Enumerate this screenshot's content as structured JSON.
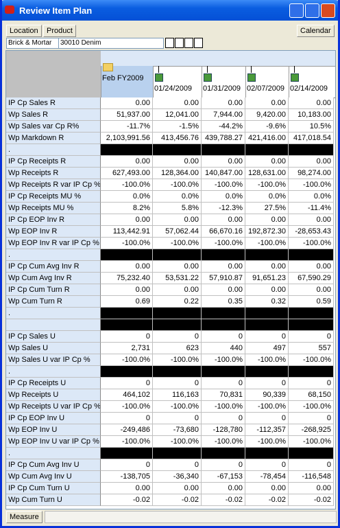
{
  "window": {
    "title": "Review Item Plan"
  },
  "toolbar": {
    "buttons": [
      "Location",
      "Product"
    ],
    "right_button": "Calendar"
  },
  "context": {
    "location": "Brick & Mortar",
    "product": "30010 Denim"
  },
  "table": {
    "columns": [
      "Feb FY2009",
      "01/24/2009",
      "01/31/2009",
      "02/07/2009",
      "02/14/2009"
    ],
    "rows": [
      {
        "label": "IP Cp Sales R",
        "values": [
          "0.00",
          "0.00",
          "0.00",
          "0.00",
          "0.00"
        ]
      },
      {
        "label": "Wp Sales R",
        "values": [
          "51,937.00",
          "12,041.00",
          "7,944.00",
          "9,420.00",
          "10,183.00"
        ]
      },
      {
        "label": "Wp Sales var Cp R%",
        "values": [
          "-11.7%",
          "-1.5%",
          "-44.2%",
          "-9.6%",
          "10.5%"
        ]
      },
      {
        "label": "Wp Markdown R",
        "values": [
          "2,103,991.56",
          "413,456.76",
          "439,788.27",
          "421,416.00",
          "417,018.54"
        ]
      },
      {
        "label": ".",
        "separator": true
      },
      {
        "label": "IP Cp Receipts R",
        "values": [
          "0.00",
          "0.00",
          "0.00",
          "0.00",
          "0.00"
        ]
      },
      {
        "label": "Wp Receipts R",
        "values": [
          "627,493.00",
          "128,364.00",
          "140,847.00",
          "128,631.00",
          "98,274.00"
        ]
      },
      {
        "label": "Wp Receipts R var IP Cp %",
        "values": [
          "-100.0%",
          "-100.0%",
          "-100.0%",
          "-100.0%",
          "-100.0%"
        ]
      },
      {
        "label": "IP Cp Receipts MU %",
        "values": [
          "0.0%",
          "0.0%",
          "0.0%",
          "0.0%",
          "0.0%"
        ]
      },
      {
        "label": "Wp Receipts MU %",
        "values": [
          "8.2%",
          "5.8%",
          "-12.3%",
          "27.5%",
          "-11.4%"
        ]
      },
      {
        "label": "IP Cp EOP Inv R",
        "values": [
          "0.00",
          "0.00",
          "0.00",
          "0.00",
          "0.00"
        ]
      },
      {
        "label": "Wp EOP Inv R",
        "values": [
          "113,442.91",
          "57,062.44",
          "66,670.16",
          "192,872.30",
          "-28,653.43"
        ]
      },
      {
        "label": "Wp EOP Inv R var IP Cp %",
        "values": [
          "-100.0%",
          "-100.0%",
          "-100.0%",
          "-100.0%",
          "-100.0%"
        ]
      },
      {
        "label": ".",
        "separator": true
      },
      {
        "label": "IP Cp Cum Avg Inv R",
        "values": [
          "0.00",
          "0.00",
          "0.00",
          "0.00",
          "0.00"
        ]
      },
      {
        "label": "Wp Cum Avg Inv R",
        "values": [
          "75,232.40",
          "53,531.22",
          "57,910.87",
          "91,651.23",
          "67,590.29"
        ]
      },
      {
        "label": "IP Cp Cum Turn R",
        "values": [
          "0.00",
          "0.00",
          "0.00",
          "0.00",
          "0.00"
        ]
      },
      {
        "label": "Wp Cum Turn R",
        "values": [
          "0.69",
          "0.22",
          "0.35",
          "0.32",
          "0.59"
        ]
      },
      {
        "label": ".",
        "separator": true
      },
      {
        "separator": true
      },
      {
        "label": "IP Cp Sales U",
        "values": [
          "0",
          "0",
          "0",
          "0",
          "0"
        ]
      },
      {
        "label": "Wp Sales U",
        "values": [
          "2,731",
          "623",
          "440",
          "497",
          "557"
        ]
      },
      {
        "label": "Wp Sales U var IP Cp %",
        "values": [
          "-100.0%",
          "-100.0%",
          "-100.0%",
          "-100.0%",
          "-100.0%"
        ]
      },
      {
        "label": ".",
        "separator": true
      },
      {
        "label": "IP Cp Receipts U",
        "values": [
          "0",
          "0",
          "0",
          "0",
          "0"
        ]
      },
      {
        "label": "Wp Receipts U",
        "values": [
          "464,102",
          "116,163",
          "70,831",
          "90,339",
          "68,150"
        ]
      },
      {
        "label": "Wp Receipts U var IP Cp %",
        "values": [
          "-100.0%",
          "-100.0%",
          "-100.0%",
          "-100.0%",
          "-100.0%"
        ]
      },
      {
        "label": "IP Cp EOP Inv U",
        "values": [
          "0",
          "0",
          "0",
          "0",
          "0"
        ]
      },
      {
        "label": "Wp EOP Inv U",
        "values": [
          "-249,486",
          "-73,680",
          "-128,780",
          "-112,357",
          "-268,925"
        ]
      },
      {
        "label": "Wp EOP Inv U var IP Cp %",
        "values": [
          "-100.0%",
          "-100.0%",
          "-100.0%",
          "-100.0%",
          "-100.0%"
        ]
      },
      {
        "label": ".",
        "separator": true
      },
      {
        "label": "IP Cp Cum Avg Inv U",
        "values": [
          "0",
          "0",
          "0",
          "0",
          "0"
        ]
      },
      {
        "label": "Wp Cum Avg Inv U",
        "values": [
          "-138,705",
          "-36,340",
          "-67,153",
          "-78,454",
          "-116,548"
        ]
      },
      {
        "label": "IP Cp Cum Turn U",
        "values": [
          "0.00",
          "0.00",
          "0.00",
          "0.00",
          "0.00"
        ]
      },
      {
        "label": "Wp Cum Turn U",
        "values": [
          "-0.02",
          "-0.02",
          "-0.02",
          "-0.02",
          "-0.02"
        ]
      }
    ]
  },
  "footer": {
    "button": "Measure"
  }
}
